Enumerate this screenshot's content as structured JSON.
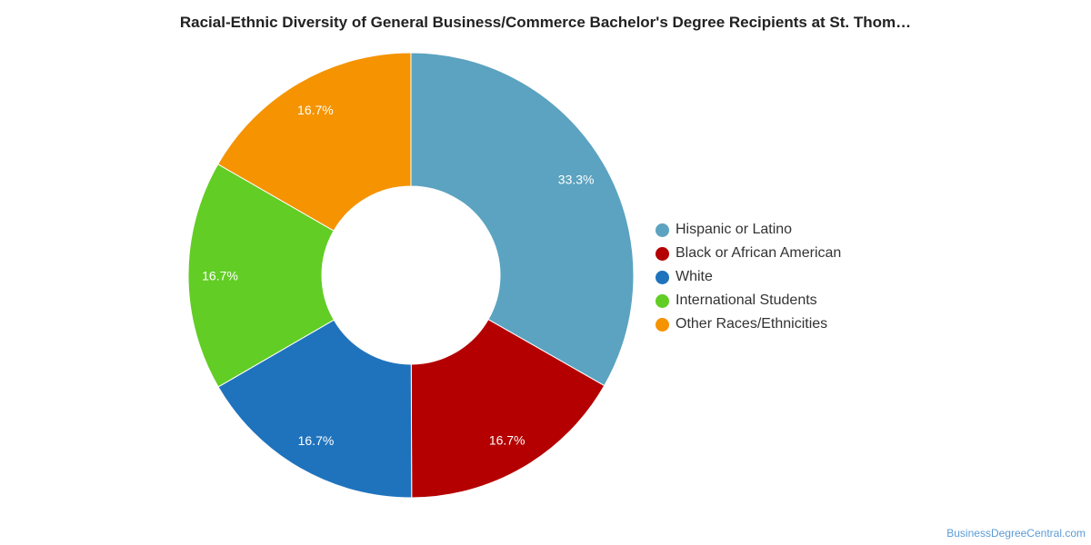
{
  "chart_data": {
    "type": "pie",
    "subtype": "donut",
    "title": "Racial-Ethnic Diversity of General Business/Commerce Bachelor's Degree Recipients at St. Thom…",
    "categories": [
      "Hispanic or Latino",
      "Black or African American",
      "White",
      "International Students",
      "Other Races/Ethnicities"
    ],
    "values": [
      33.3,
      16.7,
      16.7,
      16.7,
      16.7
    ],
    "data_labels": [
      "33.3%",
      "16.7%",
      "16.7%",
      "16.7%",
      "16.7%"
    ],
    "colors": [
      "#5ba3c0",
      "#b40000",
      "#1f73bd",
      "#62cd24",
      "#f59300"
    ],
    "legend_position": "right"
  },
  "credit": "BusinessDegreeCentral.com"
}
